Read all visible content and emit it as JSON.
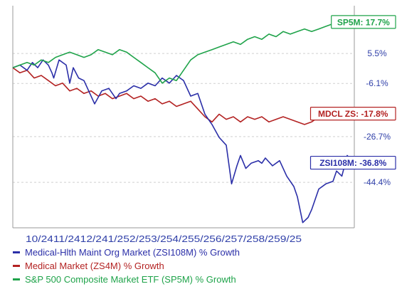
{
  "chart_data": {
    "type": "line",
    "x_tick_labels": [
      "10/24",
      "11/24",
      "12/24",
      "1/25",
      "2/25",
      "3/25",
      "4/25",
      "5/25",
      "6/25",
      "7/25",
      "8/25",
      "9/25"
    ],
    "x_tick_display": "10/2411/2412/241/252/253/254/255/256/257/258/259/25",
    "y_unit": "% Growth",
    "y_tick_labels": [
      "5.5%",
      "-6.1%",
      "-26.7%",
      "-44.4%"
    ],
    "y_ticks": [
      5.5,
      -6.1,
      -26.7,
      -44.4
    ],
    "ylim": [
      -62,
      24
    ],
    "grid": "horizontal dashed",
    "series": [
      {
        "name": "Medical-Hlth Maint Org Market (ZSI108M) % Growth",
        "short_label": "ZSI108M: -36.8%",
        "color": "#2b2fa8",
        "final": -36.8,
        "x": [
          0,
          0.2,
          0.4,
          0.55,
          0.7,
          0.85,
          1.0,
          1.1,
          1.15,
          1.3,
          1.5,
          1.6,
          1.7,
          1.85,
          2.0,
          2.1,
          2.3,
          2.5,
          2.7,
          2.9,
          3.0,
          3.2,
          3.4,
          3.6,
          3.8,
          4.0,
          4.2,
          4.4,
          4.6,
          4.8,
          5.0,
          5.2,
          5.4,
          5.6,
          5.8,
          6.0,
          6.15,
          6.3,
          6.4,
          6.55,
          6.7,
          6.9,
          7.0,
          7.1,
          7.3,
          7.5,
          7.7,
          7.9,
          8.0,
          8.15,
          8.3,
          8.4,
          8.6,
          8.8,
          9.0,
          9.1,
          9.25,
          9.4,
          9.6
        ],
        "values": [
          0,
          1,
          -1,
          2,
          0,
          3,
          1,
          -2,
          -4,
          3,
          1,
          -6,
          0,
          -4,
          -5,
          -8,
          -14,
          -9,
          -8,
          -12,
          -10,
          -9,
          -7,
          -8,
          -6,
          -7,
          -4,
          -6,
          -3,
          -5,
          -11,
          -10,
          -18,
          -22,
          -27,
          -30,
          -45,
          -38,
          -34,
          -39,
          -37,
          -36,
          -37,
          -35,
          -38,
          -36,
          -42,
          -46,
          -50,
          -60,
          -58,
          -55,
          -47,
          -45,
          -44,
          -40,
          -42,
          -34,
          -37
        ]
      },
      {
        "name": "Medical Market (ZS4M) % Growth",
        "short_label": "MDCL ZS: -17.8%",
        "color": "#b32222",
        "final": -17.8,
        "x": [
          0,
          0.2,
          0.4,
          0.6,
          0.8,
          1.0,
          1.2,
          1.4,
          1.6,
          1.8,
          2.0,
          2.2,
          2.4,
          2.6,
          2.8,
          3.0,
          3.2,
          3.4,
          3.6,
          3.8,
          4.0,
          4.2,
          4.4,
          4.6,
          4.8,
          5.0,
          5.2,
          5.4,
          5.6,
          5.8,
          6.0,
          6.2,
          6.4,
          6.6,
          6.8,
          7.0,
          7.2,
          7.4,
          7.6,
          7.8,
          8.0,
          8.2,
          8.4,
          8.6,
          8.8,
          9.0,
          9.2,
          9.4,
          9.6
        ],
        "values": [
          0,
          -2,
          -1,
          -4,
          -3,
          -5,
          -7,
          -6,
          -9,
          -8,
          -10,
          -9,
          -11,
          -10,
          -12,
          -11,
          -10,
          -12,
          -11,
          -13,
          -12,
          -14,
          -13,
          -15,
          -14,
          -13,
          -16,
          -19,
          -21,
          -18,
          -20,
          -19,
          -21,
          -19,
          -20,
          -19,
          -21,
          -20,
          -19,
          -20,
          -21,
          -22,
          -21,
          -19,
          -20,
          -19,
          -18,
          -17,
          -18
        ]
      },
      {
        "name": "S&P 500 Composite Market ETF (SP5M) % Growth",
        "short_label": "SP5M: 17.7%",
        "color": "#1fa34a",
        "final": 17.7,
        "x": [
          0,
          0.2,
          0.4,
          0.6,
          0.8,
          1.0,
          1.2,
          1.4,
          1.6,
          1.8,
          2.0,
          2.2,
          2.4,
          2.6,
          2.8,
          3.0,
          3.2,
          3.4,
          3.6,
          3.8,
          4.0,
          4.2,
          4.4,
          4.6,
          4.8,
          5.0,
          5.2,
          5.4,
          5.6,
          5.8,
          6.0,
          6.2,
          6.4,
          6.6,
          6.8,
          7.0,
          7.2,
          7.4,
          7.6,
          7.8,
          8.0,
          8.2,
          8.4,
          8.6,
          8.8,
          9.0,
          9.2,
          9.4,
          9.6
        ],
        "values": [
          0,
          1,
          2,
          1,
          3,
          2,
          4,
          5,
          6,
          5,
          4,
          5,
          7,
          6,
          5,
          7,
          6,
          4,
          2,
          0,
          -2,
          -6,
          -4,
          -5,
          -1,
          3,
          5,
          6,
          7,
          8,
          9,
          10,
          9,
          11,
          12,
          11,
          13,
          12,
          14,
          13,
          14,
          15,
          14,
          15,
          16,
          17,
          16,
          17,
          17.7
        ]
      }
    ]
  }
}
